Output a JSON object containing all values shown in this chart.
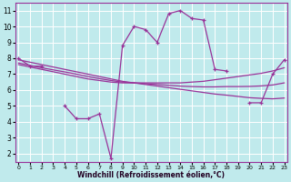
{
  "xlabel": "Windchill (Refroidissement éolien,°C)",
  "background_color": "#c0eaec",
  "line_color": "#993399",
  "grid_color": "#ffffff",
  "xticks": [
    0,
    1,
    2,
    3,
    4,
    5,
    6,
    7,
    8,
    9,
    10,
    11,
    12,
    13,
    14,
    15,
    16,
    17,
    18,
    19,
    20,
    21,
    22,
    23
  ],
  "yticks": [
    2,
    3,
    4,
    5,
    6,
    7,
    8,
    9,
    10,
    11
  ],
  "hours": [
    0,
    1,
    2,
    3,
    4,
    5,
    6,
    7,
    8,
    9,
    10,
    11,
    12,
    13,
    14,
    15,
    16,
    17,
    18,
    19,
    20,
    21,
    22,
    23
  ],
  "y_jagged": [
    8.0,
    7.5,
    7.5,
    null,
    5.0,
    4.2,
    4.2,
    4.5,
    1.7,
    8.8,
    10.0,
    9.8,
    9.0,
    10.8,
    11.0,
    10.5,
    10.4,
    7.3,
    7.2,
    null,
    5.2,
    5.2,
    7.0,
    7.9
  ],
  "y_smooth_dec": [
    7.9,
    7.75,
    7.6,
    7.45,
    7.3,
    7.15,
    7.0,
    6.85,
    6.7,
    6.55,
    6.45,
    6.35,
    6.25,
    6.15,
    6.05,
    5.95,
    5.85,
    5.75,
    5.68,
    5.6,
    5.52,
    5.48,
    5.45,
    5.5
  ],
  "y_smooth_inc": [
    7.6,
    7.45,
    7.3,
    7.15,
    7.0,
    6.85,
    6.7,
    6.6,
    6.5,
    6.45,
    6.45,
    6.45,
    6.45,
    6.45,
    6.45,
    6.5,
    6.55,
    6.65,
    6.75,
    6.85,
    6.95,
    7.05,
    7.2,
    7.4
  ],
  "y_smooth_mid": [
    7.7,
    7.55,
    7.4,
    7.27,
    7.14,
    7.0,
    6.85,
    6.72,
    6.6,
    6.5,
    6.45,
    6.4,
    6.35,
    6.3,
    6.25,
    6.22,
    6.2,
    6.2,
    6.22,
    6.22,
    6.23,
    6.26,
    6.32,
    6.45
  ],
  "xlim": [
    -0.3,
    23.3
  ],
  "ylim": [
    1.5,
    11.5
  ]
}
